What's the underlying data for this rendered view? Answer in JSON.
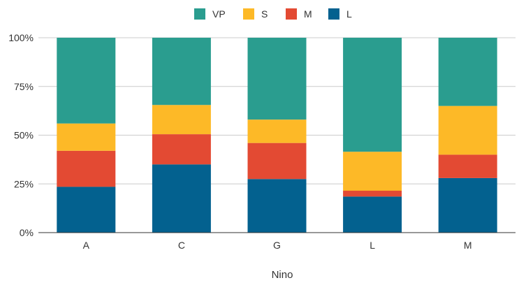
{
  "chart_data": {
    "type": "bar",
    "stacked": true,
    "normalized": true,
    "categories": [
      "A",
      "C",
      "G",
      "L",
      "M"
    ],
    "series": [
      {
        "name": "L",
        "color": "#03618f",
        "values": [
          0.235,
          0.35,
          0.275,
          0.185,
          0.28
        ]
      },
      {
        "name": "M",
        "color": "#e34a33",
        "values": [
          0.185,
          0.155,
          0.185,
          0.03,
          0.12
        ]
      },
      {
        "name": "S",
        "color": "#fdb927",
        "values": [
          0.14,
          0.15,
          0.12,
          0.2,
          0.25
        ]
      },
      {
        "name": "VP",
        "color": "#2a9d8f",
        "values": [
          0.44,
          0.345,
          0.42,
          0.585,
          0.35
        ]
      }
    ],
    "legend_order": [
      "VP",
      "S",
      "M",
      "L"
    ],
    "legend_position": "top",
    "xlabel": "Nino",
    "ylabel": "",
    "ylim": [
      0,
      1
    ],
    "yticks": [
      "0%",
      "25%",
      "50%",
      "75%",
      "100%"
    ],
    "grid": true
  }
}
